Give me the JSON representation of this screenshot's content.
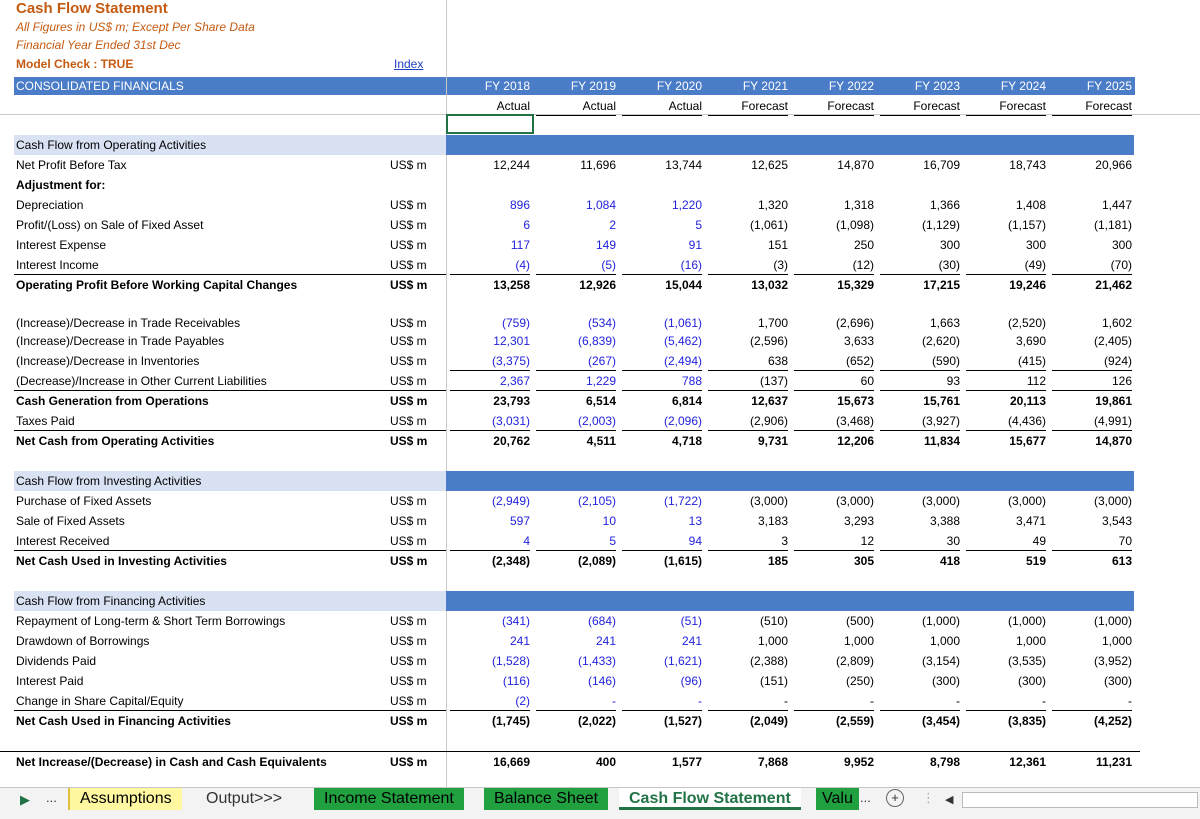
{
  "header": {
    "title": "Cash Flow Statement",
    "subtitle1": "All Figures in US$ m; Except Per Share Data",
    "subtitle2": "Financial Year Ended 31st Dec",
    "model_check": "Model Check : TRUE",
    "index_link": "Index",
    "consolidated": "CONSOLIDATED FINANCIALS"
  },
  "years": [
    "FY 2018",
    "FY 2019",
    "FY 2020",
    "FY 2021",
    "FY 2022",
    "FY 2023",
    "FY 2024",
    "FY 2025"
  ],
  "year_types": [
    "Actual",
    "Actual",
    "Actual",
    "Forecast",
    "Forecast",
    "Forecast",
    "Forecast",
    "Forecast"
  ],
  "sections": {
    "operating": "Cash Flow from Operating Activities",
    "investing": "Cash Flow from Investing Activities",
    "financing": "Cash Flow from Financing Activities"
  },
  "rows": {
    "npbt": {
      "label": "Net Profit Before Tax",
      "unit": "US$ m",
      "v": [
        "12,244",
        "11,696",
        "13,744",
        "12,625",
        "14,870",
        "16,709",
        "18,743",
        "20,966"
      ]
    },
    "adj": {
      "label": "Adjustment for:"
    },
    "dep": {
      "label": "Depreciation",
      "unit": "US$ m",
      "v": [
        "896",
        "1,084",
        "1,220",
        "1,320",
        "1,318",
        "1,366",
        "1,408",
        "1,447"
      ]
    },
    "pl_sale": {
      "label": "Profit/(Loss) on Sale of Fixed Asset",
      "unit": "US$ m",
      "v": [
        "6",
        "2",
        "5",
        "(1,061)",
        "(1,098)",
        "(1,129)",
        "(1,157)",
        "(1,181)"
      ]
    },
    "int_exp": {
      "label": "Interest Expense",
      "unit": "US$ m",
      "v": [
        "117",
        "149",
        "91",
        "151",
        "250",
        "300",
        "300",
        "300"
      ]
    },
    "int_inc": {
      "label": "Interest Income",
      "unit": "US$ m",
      "v": [
        "(4)",
        "(5)",
        "(16)",
        "(3)",
        "(12)",
        "(30)",
        "(49)",
        "(70)"
      ]
    },
    "op_before_wc": {
      "label": "Operating Profit Before Working Capital Changes",
      "unit": "US$ m",
      "v": [
        "13,258",
        "12,926",
        "15,044",
        "13,032",
        "15,329",
        "17,215",
        "19,246",
        "21,462"
      ]
    },
    "trade_rec": {
      "label": "(Increase)/Decrease in Trade Receivables",
      "unit": "US$ m",
      "v": [
        "(759)",
        "(534)",
        "(1,061)",
        "1,700",
        "(2,696)",
        "1,663",
        "(2,520)",
        "1,602"
      ]
    },
    "trade_pay": {
      "label": "(Increase)/Decrease in Trade Payables",
      "unit": "US$ m",
      "v": [
        "12,301",
        "(6,839)",
        "(5,462)",
        "(2,596)",
        "3,633",
        "(2,620)",
        "3,690",
        "(2,405)"
      ]
    },
    "inventories": {
      "label": "(Increase)/Decrease in Inventories",
      "unit": "US$ m",
      "v": [
        "(3,375)",
        "(267)",
        "(2,494)",
        "638",
        "(652)",
        "(590)",
        "(415)",
        "(924)"
      ]
    },
    "other_cl": {
      "label": "(Decrease)/Increase in Other Current Liabilities",
      "unit": "US$ m",
      "v": [
        "2,367",
        "1,229",
        "788",
        "(137)",
        "60",
        "93",
        "112",
        "126"
      ]
    },
    "cash_gen": {
      "label": "Cash Generation from Operations",
      "unit": "US$ m",
      "v": [
        "23,793",
        "6,514",
        "6,814",
        "12,637",
        "15,673",
        "15,761",
        "20,113",
        "19,861"
      ]
    },
    "taxes": {
      "label": "Taxes Paid",
      "unit": "US$ m",
      "v": [
        "(3,031)",
        "(2,003)",
        "(2,096)",
        "(2,906)",
        "(3,468)",
        "(3,927)",
        "(4,436)",
        "(4,991)"
      ]
    },
    "net_op": {
      "label": "Net Cash from Operating Activities",
      "unit": "US$ m",
      "v": [
        "20,762",
        "4,511",
        "4,718",
        "9,731",
        "12,206",
        "11,834",
        "15,677",
        "14,870"
      ]
    },
    "purch_fa": {
      "label": "Purchase of Fixed Assets",
      "unit": "US$ m",
      "v": [
        "(2,949)",
        "(2,105)",
        "(1,722)",
        "(3,000)",
        "(3,000)",
        "(3,000)",
        "(3,000)",
        "(3,000)"
      ]
    },
    "sale_fa": {
      "label": "Sale of Fixed Assets",
      "unit": "US$ m",
      "v": [
        "597",
        "10",
        "13",
        "3,183",
        "3,293",
        "3,388",
        "3,471",
        "3,543"
      ]
    },
    "int_rec": {
      "label": "Interest Received",
      "unit": "US$ m",
      "v": [
        "4",
        "5",
        "94",
        "3",
        "12",
        "30",
        "49",
        "70"
      ]
    },
    "net_inv": {
      "label": "Net Cash Used in Investing Activities",
      "unit": "US$ m",
      "v": [
        "(2,348)",
        "(2,089)",
        "(1,615)",
        "185",
        "305",
        "418",
        "519",
        "613"
      ]
    },
    "repay": {
      "label": "Repayment of Long-term & Short Term Borrowings",
      "unit": "US$ m",
      "v": [
        "(341)",
        "(684)",
        "(51)",
        "(510)",
        "(500)",
        "(1,000)",
        "(1,000)",
        "(1,000)"
      ]
    },
    "drawdown": {
      "label": "Drawdown of Borrowings",
      "unit": "US$ m",
      "v": [
        "241",
        "241",
        "241",
        "1,000",
        "1,000",
        "1,000",
        "1,000",
        "1,000"
      ]
    },
    "dividends": {
      "label": "Dividends Paid",
      "unit": "US$ m",
      "v": [
        "(1,528)",
        "(1,433)",
        "(1,621)",
        "(2,388)",
        "(2,809)",
        "(3,154)",
        "(3,535)",
        "(3,952)"
      ]
    },
    "int_paid": {
      "label": "Interest Paid",
      "unit": "US$ m",
      "v": [
        "(116)",
        "(146)",
        "(96)",
        "(151)",
        "(250)",
        "(300)",
        "(300)",
        "(300)"
      ]
    },
    "share_cap": {
      "label": "Change in Share Capital/Equity",
      "unit": "US$ m",
      "v": [
        "(2)",
        "-",
        "-",
        "-",
        "-",
        "-",
        "-",
        "-"
      ]
    },
    "net_fin": {
      "label": "Net Cash Used in Financing Activities",
      "unit": "US$ m",
      "v": [
        "(1,745)",
        "(2,022)",
        "(1,527)",
        "(2,049)",
        "(2,559)",
        "(3,454)",
        "(3,835)",
        "(4,252)"
      ]
    },
    "net_incr": {
      "label": "Net Increase/(Decrease) in Cash and Cash Equivalents",
      "unit": "US$ m",
      "v": [
        "16,669",
        "400",
        "1,577",
        "7,868",
        "9,952",
        "8,798",
        "12,361",
        "11,231"
      ]
    }
  },
  "tabs": {
    "nav_more": "...",
    "assumptions": "Assumptions",
    "output": "Output>>>",
    "income": "Income Statement",
    "balance": "Balance Sheet",
    "cashflow": "Cash Flow Statement",
    "valuation": "Valu",
    "ellipsis": "...",
    "add": "+"
  }
}
